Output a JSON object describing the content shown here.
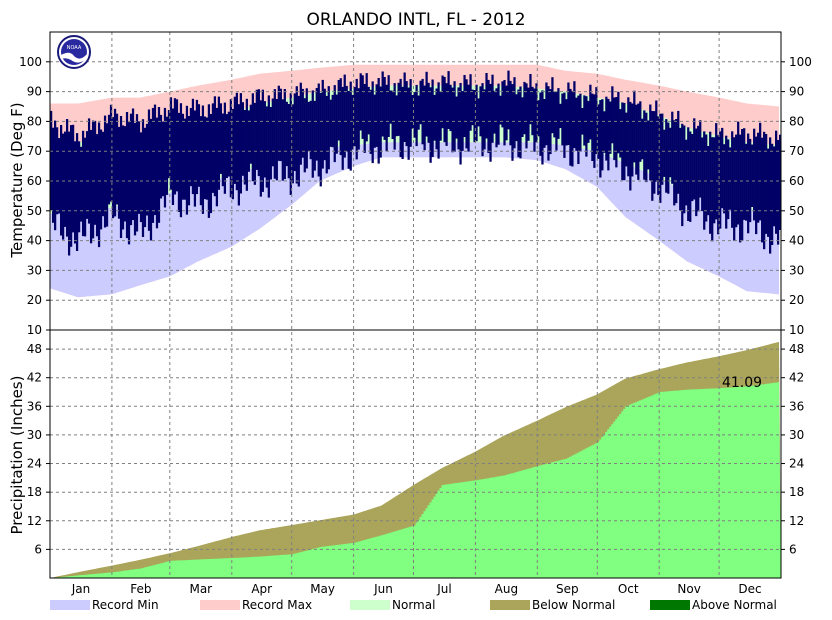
{
  "title": "ORLANDO INTL, FL - 2012",
  "logo_text": "NOAA",
  "colors": {
    "record_min": "#ccccff",
    "record_max": "#ffcccc",
    "normal": "#ccffcc",
    "actual_temp": "#000066",
    "below_normal": "#aaa55a",
    "above_normal": "#007700",
    "actual_precip": "#80ff80",
    "grid": "#808080"
  },
  "chart_data": [
    {
      "type": "bar",
      "name": "temperature",
      "ylabel": "Temperature (Deg F)",
      "ylim": [
        10,
        110
      ],
      "yticks": [
        10,
        20,
        30,
        40,
        50,
        60,
        70,
        80,
        90,
        100
      ],
      "months": [
        "Jan",
        "Feb",
        "Mar",
        "Apr",
        "May",
        "Jun",
        "Jul",
        "Aug",
        "Sep",
        "Oct",
        "Nov",
        "Dec"
      ],
      "grid": true,
      "x_days": [
        1,
        15,
        32,
        46,
        61,
        75,
        92,
        106,
        122,
        136,
        153,
        167,
        183,
        197,
        214,
        228,
        245,
        259,
        275,
        289,
        306,
        320,
        336,
        350,
        366
      ],
      "series": [
        {
          "name": "Record Min",
          "low": [
            24,
            21,
            22,
            25,
            28,
            33,
            38,
            44,
            52,
            60,
            65,
            68,
            68,
            68,
            68,
            68,
            67,
            64,
            58,
            48,
            40,
            33,
            28,
            23,
            22
          ]
        },
        {
          "name": "Record Max",
          "high": [
            86,
            86,
            88,
            88,
            90,
            92,
            94,
            96,
            97,
            98,
            99,
            99,
            99,
            99,
            99,
            99,
            99,
            97,
            96,
            94,
            92,
            90,
            88,
            86,
            85
          ]
        },
        {
          "name": "Normal",
          "low": [
            49,
            50,
            51,
            54,
            56,
            59,
            62,
            65,
            68,
            71,
            72,
            73,
            73,
            73,
            73,
            73,
            73,
            72,
            70,
            66,
            61,
            56,
            52,
            50,
            49
          ],
          "high": [
            72,
            73,
            74,
            76,
            78,
            80,
            83,
            86,
            88,
            90,
            91,
            92,
            92,
            92,
            92,
            92,
            91,
            90,
            88,
            86,
            82,
            78,
            75,
            73,
            72
          ]
        },
        {
          "name": "Actual",
          "low": [
            45,
            40,
            48,
            42,
            55,
            52,
            58,
            60,
            62,
            65,
            70,
            72,
            73,
            72,
            73,
            73,
            72,
            71,
            68,
            64,
            58,
            50,
            45,
            45,
            40
          ],
          "high": [
            80,
            75,
            82,
            80,
            85,
            84,
            86,
            88,
            89,
            90,
            93,
            93,
            92,
            93,
            92,
            93,
            91,
            90,
            88,
            87,
            82,
            78,
            75,
            76,
            74
          ]
        }
      ]
    },
    {
      "type": "area",
      "name": "precipitation",
      "ylabel": "Precipitation (Inches)",
      "ylim": [
        0,
        52
      ],
      "yticks": [
        6,
        12,
        18,
        24,
        30,
        36,
        42,
        48
      ],
      "grid": true,
      "annotation": "41.09",
      "x_days": [
        1,
        16,
        32,
        46,
        61,
        76,
        92,
        106,
        122,
        136,
        153,
        167,
        183,
        197,
        214,
        228,
        245,
        259,
        275,
        289,
        306,
        320,
        336,
        350,
        366
      ],
      "series": [
        {
          "name": "Normal",
          "values": [
            0,
            1.3,
            2.6,
            3.8,
            5.2,
            6.8,
            8.6,
            10.0,
            11.1,
            12.1,
            13.3,
            15.2,
            19.5,
            23.0,
            26.5,
            29.8,
            33.0,
            35.8,
            38.5,
            41.8,
            43.8,
            45.2,
            46.5,
            47.8,
            49.5
          ]
        },
        {
          "name": "Actual",
          "values": [
            0,
            0.6,
            1.2,
            2.0,
            3.6,
            3.9,
            4.2,
            4.5,
            5.0,
            6.5,
            7.4,
            9.0,
            11.0,
            19.5,
            20.5,
            21.5,
            23.5,
            25.0,
            28.5,
            36.0,
            39.0,
            39.5,
            39.8,
            40.2,
            41.09
          ]
        }
      ]
    }
  ],
  "legend": [
    {
      "label": "Record Min",
      "color": "#ccccff"
    },
    {
      "label": "Record Max",
      "color": "#ffcccc"
    },
    {
      "label": "Normal",
      "color": "#ccffcc"
    },
    {
      "label": "Below Normal",
      "color": "#aaa55a"
    },
    {
      "label": "Above Normal",
      "color": "#007700"
    }
  ]
}
